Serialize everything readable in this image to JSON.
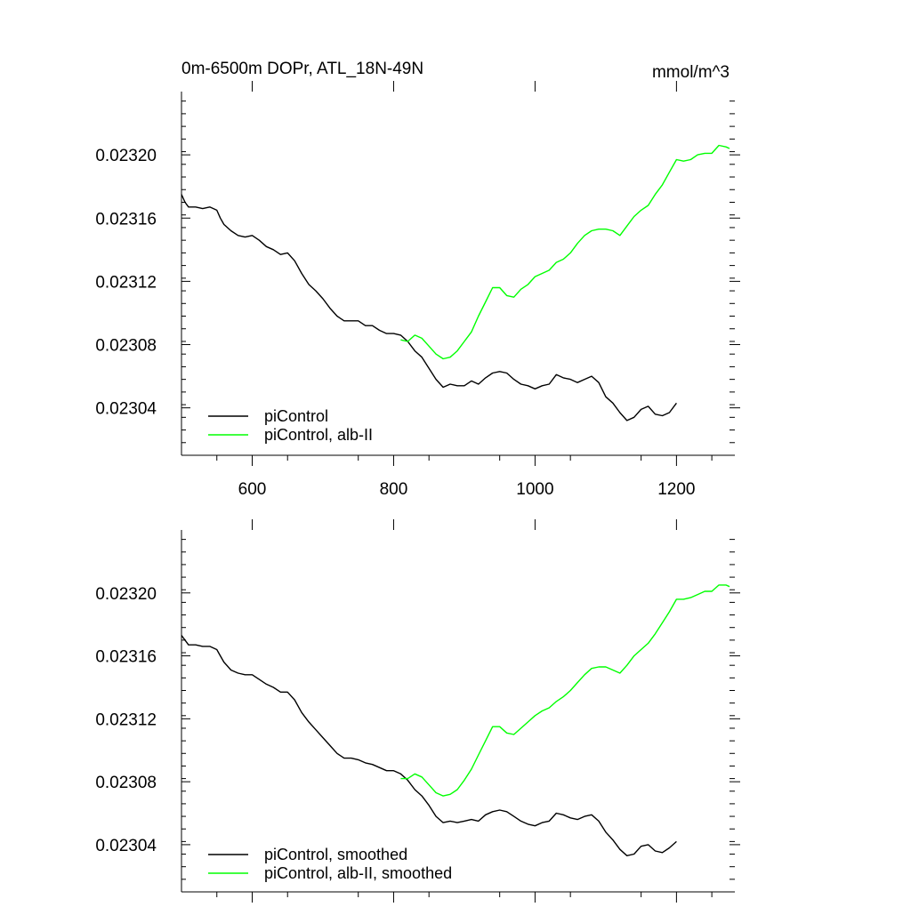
{
  "chart_data": [
    {
      "type": "line",
      "title": "0m-6500m DOPr, ATL_18N-49N",
      "units": "mmol/m^3",
      "xlim": [
        500,
        1275
      ],
      "ylim": [
        0.02301,
        0.02324
      ],
      "xticks": [
        600,
        800,
        1000,
        1200
      ],
      "xtick_labels": [
        "600",
        "800",
        "1000",
        "1200"
      ],
      "yticks": [
        0.02304,
        0.02308,
        0.02312,
        0.02316,
        0.0232
      ],
      "ytick_labels": [
        "0.02304",
        "0.02308",
        "0.02312",
        "0.02316",
        "0.02320"
      ],
      "series": [
        {
          "name": "piControl",
          "color": "#000000",
          "x": [
            500,
            505,
            510,
            520,
            530,
            540,
            550,
            555,
            560,
            570,
            580,
            590,
            600,
            610,
            620,
            630,
            640,
            650,
            660,
            670,
            680,
            690,
            700,
            710,
            720,
            730,
            740,
            750,
            760,
            770,
            780,
            790,
            800,
            810,
            820,
            830,
            840,
            850,
            860,
            870,
            880,
            890,
            900,
            910,
            920,
            930,
            940,
            950,
            960,
            970,
            980,
            990,
            1000,
            1010,
            1020,
            1030,
            1040,
            1050,
            1060,
            1070,
            1080,
            1090,
            1100,
            1110,
            1120,
            1130,
            1140,
            1150,
            1160,
            1170,
            1180,
            1190,
            1200
          ],
          "y": [
            0.023175,
            0.02317,
            0.023167,
            0.023167,
            0.023166,
            0.023167,
            0.023165,
            0.02316,
            0.023156,
            0.023152,
            0.023149,
            0.023148,
            0.023149,
            0.023146,
            0.023142,
            0.02314,
            0.023137,
            0.023138,
            0.023133,
            0.023125,
            0.023118,
            0.023114,
            0.023109,
            0.023103,
            0.023098,
            0.023095,
            0.023095,
            0.023095,
            0.023092,
            0.023092,
            0.023089,
            0.023087,
            0.023087,
            0.023086,
            0.023082,
            0.023076,
            0.023072,
            0.023065,
            0.023058,
            0.023053,
            0.023055,
            0.023054,
            0.023054,
            0.023057,
            0.023055,
            0.023059,
            0.023062,
            0.023063,
            0.023062,
            0.023058,
            0.023055,
            0.023054,
            0.023052,
            0.023054,
            0.023055,
            0.023061,
            0.023059,
            0.023058,
            0.023056,
            0.023058,
            0.02306,
            0.023056,
            0.023047,
            0.023043,
            0.023037,
            0.023032,
            0.023034,
            0.023039,
            0.023041,
            0.023036,
            0.023035,
            0.023037,
            0.023043
          ]
        },
        {
          "name": "piControl, alb-II",
          "color": "#00ff00",
          "x": [
            810,
            820,
            830,
            840,
            850,
            860,
            870,
            880,
            890,
            900,
            910,
            920,
            930,
            940,
            950,
            960,
            970,
            980,
            990,
            1000,
            1010,
            1020,
            1030,
            1040,
            1050,
            1060,
            1070,
            1080,
            1090,
            1100,
            1110,
            1120,
            1130,
            1140,
            1150,
            1160,
            1170,
            1180,
            1190,
            1200,
            1210,
            1220,
            1230,
            1240,
            1250,
            1260,
            1270,
            1275
          ],
          "y": [
            0.023083,
            0.023082,
            0.023086,
            0.023084,
            0.023079,
            0.023074,
            0.023071,
            0.023072,
            0.023076,
            0.023082,
            0.023088,
            0.023098,
            0.023107,
            0.023116,
            0.023116,
            0.023111,
            0.02311,
            0.023115,
            0.023118,
            0.023123,
            0.023125,
            0.023127,
            0.023132,
            0.023134,
            0.023138,
            0.023144,
            0.023149,
            0.023152,
            0.023153,
            0.023153,
            0.023152,
            0.023149,
            0.023155,
            0.023161,
            0.023165,
            0.023168,
            0.023175,
            0.023181,
            0.023189,
            0.023197,
            0.023196,
            0.023197,
            0.0232,
            0.023201,
            0.023201,
            0.023206,
            0.023205,
            0.023204
          ]
        }
      ],
      "legend": {
        "position": "bottom-left",
        "entries": [
          "piControl",
          "piControl, alb-II"
        ]
      }
    },
    {
      "type": "line",
      "title": "",
      "xlim": [
        500,
        1275
      ],
      "ylim": [
        0.02301,
        0.02324
      ],
      "xticks": [
        600,
        800,
        1000,
        1200
      ],
      "xtick_labels": [],
      "yticks": [
        0.02304,
        0.02308,
        0.02312,
        0.02316,
        0.0232
      ],
      "ytick_labels": [
        "0.02304",
        "0.02308",
        "0.02312",
        "0.02316",
        "0.02320"
      ],
      "series": [
        {
          "name": "piControl, smoothed",
          "color": "#000000",
          "x": [
            500,
            505,
            510,
            520,
            530,
            540,
            550,
            555,
            560,
            570,
            580,
            590,
            600,
            610,
            620,
            630,
            640,
            650,
            660,
            670,
            680,
            690,
            700,
            710,
            720,
            730,
            740,
            750,
            760,
            770,
            780,
            790,
            800,
            810,
            820,
            830,
            840,
            850,
            860,
            870,
            880,
            890,
            900,
            910,
            920,
            930,
            940,
            950,
            960,
            970,
            980,
            990,
            1000,
            1010,
            1020,
            1030,
            1040,
            1050,
            1060,
            1070,
            1080,
            1090,
            1100,
            1110,
            1120,
            1130,
            1140,
            1150,
            1160,
            1170,
            1180,
            1190,
            1200
          ],
          "y": [
            0.023173,
            0.02317,
            0.023167,
            0.023167,
            0.023166,
            0.023166,
            0.023164,
            0.02316,
            0.023156,
            0.023151,
            0.023149,
            0.023148,
            0.023148,
            0.023145,
            0.023142,
            0.02314,
            0.023137,
            0.023137,
            0.023132,
            0.023124,
            0.023118,
            0.023113,
            0.023108,
            0.023103,
            0.023098,
            0.023095,
            0.023095,
            0.023094,
            0.023092,
            0.023091,
            0.023089,
            0.023087,
            0.023087,
            0.023085,
            0.023081,
            0.023075,
            0.023071,
            0.023065,
            0.023058,
            0.023054,
            0.023055,
            0.023054,
            0.023055,
            0.023056,
            0.023055,
            0.023059,
            0.023061,
            0.023062,
            0.023061,
            0.023058,
            0.023055,
            0.023053,
            0.023052,
            0.023054,
            0.023055,
            0.02306,
            0.023059,
            0.023057,
            0.023056,
            0.023058,
            0.023059,
            0.023055,
            0.023048,
            0.023043,
            0.023037,
            0.023033,
            0.023034,
            0.023039,
            0.02304,
            0.023036,
            0.023035,
            0.023038,
            0.023042
          ]
        },
        {
          "name": "piControl, alb-II, smoothed",
          "color": "#00ff00",
          "x": [
            810,
            820,
            830,
            840,
            850,
            860,
            870,
            880,
            890,
            900,
            910,
            920,
            930,
            940,
            950,
            960,
            970,
            980,
            990,
            1000,
            1010,
            1020,
            1030,
            1040,
            1050,
            1060,
            1070,
            1080,
            1090,
            1100,
            1110,
            1120,
            1130,
            1140,
            1150,
            1160,
            1170,
            1180,
            1190,
            1200,
            1210,
            1220,
            1230,
            1240,
            1250,
            1260,
            1270,
            1275
          ],
          "y": [
            0.023082,
            0.023082,
            0.023085,
            0.023083,
            0.023078,
            0.023073,
            0.023071,
            0.023072,
            0.023075,
            0.023081,
            0.023088,
            0.023097,
            0.023106,
            0.023115,
            0.023115,
            0.023111,
            0.02311,
            0.023114,
            0.023118,
            0.023122,
            0.023125,
            0.023127,
            0.023131,
            0.023134,
            0.023138,
            0.023143,
            0.023148,
            0.023152,
            0.023153,
            0.023153,
            0.023151,
            0.023149,
            0.023154,
            0.02316,
            0.023164,
            0.023168,
            0.023174,
            0.023181,
            0.023188,
            0.023196,
            0.023196,
            0.023197,
            0.023199,
            0.023201,
            0.023201,
            0.023205,
            0.023205,
            0.023204
          ]
        }
      ],
      "legend": {
        "position": "bottom-left",
        "entries": [
          "piControl, smoothed",
          "piControl, alb-II, smoothed"
        ]
      }
    }
  ]
}
